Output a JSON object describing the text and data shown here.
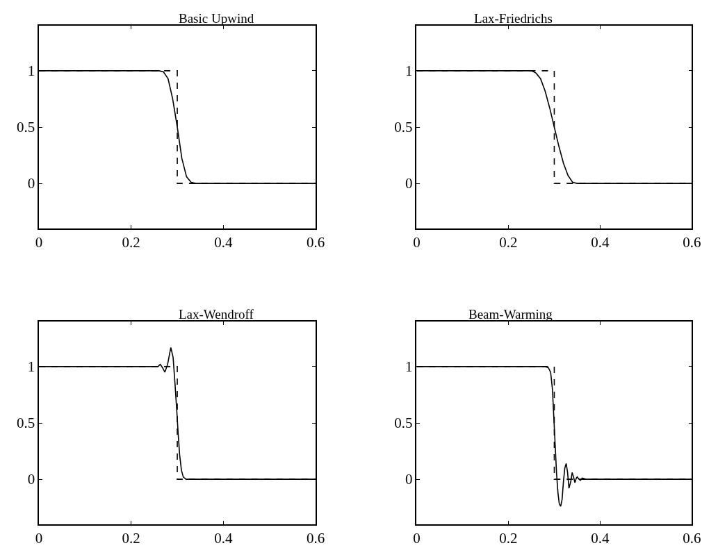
{
  "chart_data": [
    {
      "type": "line",
      "title": "Basic Upwind",
      "xlim": [
        0,
        0.6
      ],
      "xticks": [
        0,
        0.2,
        0.4,
        0.6
      ],
      "ylim": [
        -0.4,
        1.4
      ],
      "yticks": [
        0,
        0.5,
        1
      ],
      "series": [
        {
          "color": "#000000",
          "line_style": "dashed",
          "x": [
            0,
            0.3,
            0.3,
            0.6
          ],
          "values": [
            1,
            1,
            0,
            0
          ]
        },
        {
          "color": "#000000",
          "line_style": "solid",
          "x": [
            0,
            0.26,
            0.27,
            0.28,
            0.29,
            0.3,
            0.31,
            0.32,
            0.33,
            0.34,
            0.6
          ],
          "values": [
            1,
            1,
            0.99,
            0.93,
            0.75,
            0.5,
            0.22,
            0.06,
            0.01,
            0,
            0
          ]
        }
      ]
    },
    {
      "type": "line",
      "title": "Lax-Friedrichs",
      "xlim": [
        0,
        0.6
      ],
      "xticks": [
        0,
        0.2,
        0.4,
        0.6
      ],
      "ylim": [
        -0.4,
        1.4
      ],
      "yticks": [
        0,
        0.5,
        1
      ],
      "series": [
        {
          "color": "#000000",
          "line_style": "dashed",
          "x": [
            0,
            0.3,
            0.3,
            0.6
          ],
          "values": [
            1,
            1,
            0,
            0
          ]
        },
        {
          "color": "#000000",
          "line_style": "solid",
          "x": [
            0,
            0.25,
            0.26,
            0.27,
            0.28,
            0.29,
            0.3,
            0.31,
            0.32,
            0.33,
            0.34,
            0.35,
            0.6
          ],
          "values": [
            1,
            1,
            0.98,
            0.93,
            0.82,
            0.67,
            0.5,
            0.33,
            0.18,
            0.07,
            0.01,
            0,
            0
          ]
        }
      ]
    },
    {
      "type": "line",
      "title": "Lax-Wendroff",
      "xlim": [
        0,
        0.6
      ],
      "xticks": [
        0,
        0.2,
        0.4,
        0.6
      ],
      "ylim": [
        -0.4,
        1.4
      ],
      "yticks": [
        0,
        0.5,
        1
      ],
      "series": [
        {
          "color": "#000000",
          "line_style": "dashed",
          "x": [
            0,
            0.3,
            0.3,
            0.6
          ],
          "values": [
            1,
            1,
            0,
            0
          ]
        },
        {
          "color": "#000000",
          "line_style": "solid",
          "x": [
            0,
            0.25,
            0.258,
            0.263,
            0.268,
            0.273,
            0.279,
            0.286,
            0.291,
            0.295,
            0.299,
            0.302,
            0.305,
            0.309,
            0.313,
            0.319,
            0.6
          ],
          "values": [
            1,
            1,
            1,
            1.02,
            0.99,
            0.95,
            1.02,
            1.17,
            1.08,
            0.85,
            0.6,
            0.4,
            0.22,
            0.08,
            0.02,
            0,
            0
          ]
        }
      ]
    },
    {
      "type": "line",
      "title": "Beam-Warming",
      "xlim": [
        0,
        0.6
      ],
      "xticks": [
        0,
        0.2,
        0.4,
        0.6
      ],
      "ylim": [
        -0.4,
        1.4
      ],
      "yticks": [
        0,
        0.5,
        1
      ],
      "series": [
        {
          "color": "#000000",
          "line_style": "dashed",
          "x": [
            0,
            0.3,
            0.3,
            0.6
          ],
          "values": [
            1,
            1,
            0,
            0
          ]
        },
        {
          "color": "#000000",
          "line_style": "solid",
          "x": [
            0,
            0.28,
            0.287,
            0.292,
            0.296,
            0.299,
            0.302,
            0.305,
            0.308,
            0.311,
            0.314,
            0.317,
            0.32,
            0.323,
            0.326,
            0.329,
            0.332,
            0.336,
            0.339,
            0.342,
            0.345,
            0.348,
            0.35,
            0.354,
            0.357,
            0.361,
            0.369,
            0.6
          ],
          "values": [
            1,
            1,
            0.99,
            0.95,
            0.8,
            0.55,
            0.3,
            0.05,
            -0.12,
            -0.22,
            -0.24,
            -0.18,
            -0.02,
            0.1,
            0.14,
            0.06,
            -0.08,
            -0.02,
            0.06,
            0.02,
            -0.03,
            0.01,
            0.02,
            0,
            -0.01,
            0.01,
            0,
            0
          ]
        }
      ]
    }
  ]
}
